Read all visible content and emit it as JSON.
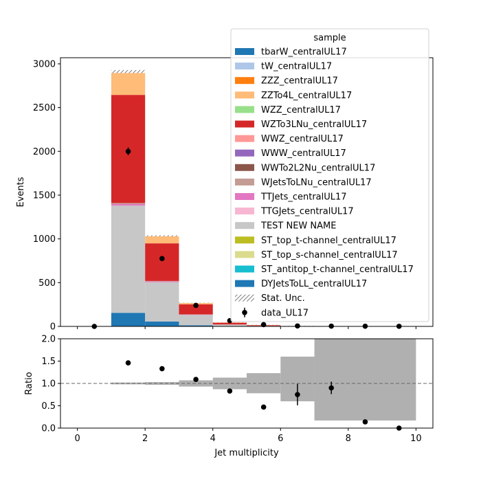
{
  "chart_data": [
    {
      "type": "bar",
      "stacked": true,
      "x_bin_edges": [
        0,
        1,
        2,
        3,
        4,
        5,
        6,
        7,
        8,
        9,
        10
      ],
      "xlim": [
        -0.5,
        10.5
      ],
      "ylim": [
        0,
        3070
      ],
      "ylabel": "Events",
      "xticks": [
        "0",
        "2",
        "4",
        "6",
        "8",
        "10"
      ],
      "yticks": [
        "0",
        "500",
        "1000",
        "1500",
        "2000",
        "2500",
        "3000"
      ],
      "series": [
        {
          "name": "DYJetsToLL_centralUL17",
          "color": "#1f77b4",
          "values": [
            0,
            155,
            55,
            12,
            5,
            2,
            0,
            0,
            0,
            0
          ]
        },
        {
          "name": "TEST NEW NAME",
          "color": "#c7c7c7",
          "values": [
            0,
            1225,
            450,
            120,
            15,
            4,
            1,
            0,
            0,
            0
          ]
        },
        {
          "name": "TTJets_centralUL17",
          "color": "#e377c2",
          "values": [
            0,
            18,
            8,
            3,
            1,
            0,
            0,
            0,
            0,
            0
          ]
        },
        {
          "name": "WJetsToLNu_centralUL17",
          "color": "#c49c94",
          "values": [
            0,
            12,
            6,
            2,
            1,
            0,
            0,
            0,
            0,
            0
          ]
        },
        {
          "name": "WZTo3LNu_centralUL17",
          "color": "#d62728",
          "values": [
            0,
            1235,
            430,
            115,
            20,
            8,
            2,
            1,
            0,
            0
          ]
        },
        {
          "name": "ZZTo4L_centralUL17",
          "color": "#ffbb78",
          "values": [
            0,
            250,
            80,
            15,
            3,
            1,
            0,
            0,
            0,
            0
          ]
        }
      ],
      "stat_unc_label": "Stat. Unc.",
      "data": {
        "name": "data_UL17",
        "x": [
          0.5,
          1.5,
          2.5,
          3.5,
          4.5,
          5.5,
          6.5,
          7.5,
          8.5,
          9.5
        ],
        "y": [
          0,
          2000,
          775,
          240,
          65,
          20,
          5,
          3,
          2,
          1
        ],
        "yerr": [
          0,
          45,
          28,
          15,
          8,
          4,
          2,
          2,
          1,
          1
        ]
      },
      "legend": {
        "title": "sample",
        "placement": "top-right",
        "entries": [
          {
            "name": "tbarW_centralUL17",
            "color": "#1f77b4"
          },
          {
            "name": "tW_centralUL17",
            "color": "#aec7e8"
          },
          {
            "name": "ZZZ_centralUL17",
            "color": "#ff7f0e"
          },
          {
            "name": "ZZTo4L_centralUL17",
            "color": "#ffbb78"
          },
          {
            "name": "WZZ_centralUL17",
            "color": "#98df8a"
          },
          {
            "name": "WZTo3LNu_centralUL17",
            "color": "#d62728"
          },
          {
            "name": "WWZ_centralUL17",
            "color": "#ff9896"
          },
          {
            "name": "WWW_centralUL17",
            "color": "#9467bd"
          },
          {
            "name": "WWTo2L2Nu_centralUL17",
            "color": "#8c564b"
          },
          {
            "name": "WJetsToLNu_centralUL17",
            "color": "#c49c94"
          },
          {
            "name": "TTJets_centralUL17",
            "color": "#e377c2"
          },
          {
            "name": "TTGJets_centralUL17",
            "color": "#f7b6d2"
          },
          {
            "name": "TEST NEW NAME",
            "color": "#c7c7c7"
          },
          {
            "name": "ST_top_t-channel_centralUL17",
            "color": "#bcbd22"
          },
          {
            "name": "ST_top_s-channel_centralUL17",
            "color": "#dbdb8d"
          },
          {
            "name": "ST_antitop_t-channel_centralUL17",
            "color": "#17becf"
          },
          {
            "name": "DYJetsToLL_centralUL17",
            "color": "#1f77b4"
          }
        ]
      }
    },
    {
      "type": "scatter",
      "ylabel": "Ratio",
      "xlabel": "Jet multiplicity",
      "xlim": [
        -0.5,
        10.5
      ],
      "ylim": [
        0,
        2
      ],
      "xticks": [
        "0",
        "2",
        "4",
        "6",
        "8",
        "10"
      ],
      "yticks": [
        "0.0",
        "0.5",
        "1.0",
        "1.5",
        "2.0"
      ],
      "reference_line": 1.0,
      "unc_band": {
        "color": "#b0b0b0",
        "bins": [
          {
            "x0": 1,
            "x1": 2,
            "lo": 0.98,
            "hi": 1.02
          },
          {
            "x0": 2,
            "x1": 3,
            "lo": 0.97,
            "hi": 1.03
          },
          {
            "x0": 3,
            "x1": 4,
            "lo": 0.93,
            "hi": 1.07
          },
          {
            "x0": 4,
            "x1": 5,
            "lo": 0.87,
            "hi": 1.13
          },
          {
            "x0": 5,
            "x1": 6,
            "lo": 0.78,
            "hi": 1.23
          },
          {
            "x0": 6,
            "x1": 7,
            "lo": 0.6,
            "hi": 1.6
          },
          {
            "x0": 7,
            "x1": 10,
            "lo": 0.17,
            "hi": 2.0
          }
        ]
      },
      "points": {
        "x": [
          1.5,
          2.5,
          3.5,
          4.5,
          5.5,
          6.5,
          7.5,
          8.5,
          9.5
        ],
        "y": [
          1.46,
          1.33,
          1.09,
          0.83,
          0.47,
          0.75,
          0.9,
          0.14,
          0.0
        ],
        "yerr": [
          0.02,
          0.02,
          0.02,
          0.03,
          0.03,
          0.24,
          0.14,
          0.0,
          0.0
        ]
      }
    }
  ]
}
